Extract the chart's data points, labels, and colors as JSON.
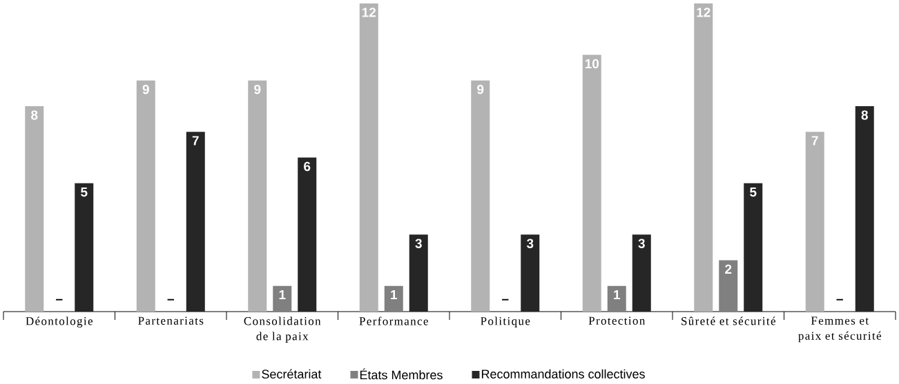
{
  "chart_data": {
    "type": "bar",
    "categories": [
      "Déontologie",
      "Partenariats",
      "Consolidation de la paix",
      "Performance",
      "Politique",
      "Protection",
      "Sûreté et sécurité",
      "Femmes et paix et sécurité"
    ],
    "series": [
      {
        "name": "Secrétariat",
        "color": "#b3b3b3",
        "values": [
          8,
          9,
          9,
          12,
          9,
          10,
          12,
          7
        ],
        "value_labels": [
          "8",
          "9",
          "9",
          "12",
          "9",
          "10",
          "12",
          "7"
        ]
      },
      {
        "name": "États Membres",
        "color": "#808080",
        "values": [
          0,
          0,
          1,
          1,
          0,
          1,
          2,
          0
        ],
        "value_labels": [
          "–",
          "–",
          "1",
          "1",
          "–",
          "1",
          "2",
          "–"
        ]
      },
      {
        "name": "Recommandations collectives",
        "color": "#262626",
        "values": [
          5,
          7,
          6,
          3,
          3,
          3,
          5,
          8
        ],
        "value_labels": [
          "5",
          "7",
          "6",
          "3",
          "3",
          "3",
          "5",
          "8"
        ]
      }
    ],
    "legend": "bottom"
  }
}
